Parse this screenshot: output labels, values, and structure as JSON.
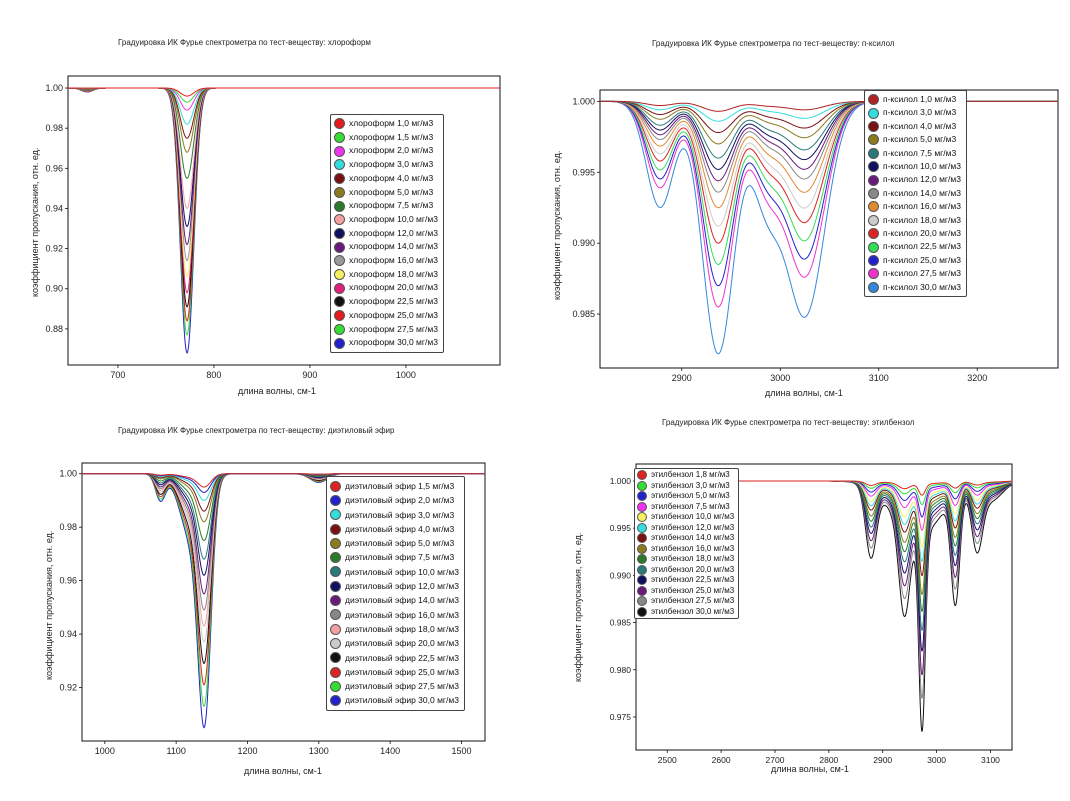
{
  "chart_data": [
    {
      "type": "line",
      "title": "Градуировка ИК Фурье спектрометра по тест-веществу: хлороформ",
      "xlabel": "длина волны, см-1",
      "ylabel": "коэффициент пропускания, отн. ед.",
      "xlim": [
        648,
        1098
      ],
      "ylim": [
        0.862,
        1.006
      ],
      "xticks": [
        "700",
        "800",
        "900",
        "1000"
      ],
      "yticks": [
        "0.88",
        "0.90",
        "0.92",
        "0.94",
        "0.96",
        "0.98",
        "1.00"
      ],
      "legend_position": "right",
      "grid": false,
      "bands": [
        {
          "center": 772,
          "width": 7,
          "rel": 1.0
        },
        {
          "center": 668,
          "width": 6,
          "rel": 0.015
        }
      ],
      "series": [
        {
          "name": "хлороформ 1,0 мг/м3",
          "color": "#e41a1c",
          "min": 0.996
        },
        {
          "name": "хлороформ 1,5 мг/м3",
          "color": "#33dd33",
          "min": 0.993
        },
        {
          "name": "хлороформ 2,0 мг/м3",
          "color": "#ee33ee",
          "min": 0.989
        },
        {
          "name": "хлороформ 3,0 мг/м3",
          "color": "#33dddd",
          "min": 0.982
        },
        {
          "name": "хлороформ 4,0 мг/м3",
          "color": "#7a1010",
          "min": 0.975
        },
        {
          "name": "хлороформ 5,0 мг/м3",
          "color": "#8a7a20",
          "min": 0.968
        },
        {
          "name": "хлороформ 7,5 мг/м3",
          "color": "#2a7a2a",
          "min": 0.955
        },
        {
          "name": "хлороформ 10,0 мг/м3",
          "color": "#f4a0a0",
          "min": 0.94
        },
        {
          "name": "хлороформ 12,0 мг/м3",
          "color": "#101060",
          "min": 0.931
        },
        {
          "name": "хлороформ 14,0 мг/м3",
          "color": "#6a1a7a",
          "min": 0.922
        },
        {
          "name": "хлороформ 16,0 мг/м3",
          "color": "#999999",
          "min": 0.914
        },
        {
          "name": "хлороформ 18,0 мг/м3",
          "color": "#f4f060",
          "min": 0.906
        },
        {
          "name": "хлороформ 20,0 мг/м3",
          "color": "#e0207a",
          "min": 0.898
        },
        {
          "name": "хлороформ 22,5 мг/м3",
          "color": "#111111",
          "min": 0.891
        },
        {
          "name": "хлороформ 25,0 мг/м3",
          "color": "#e41a1c",
          "min": 0.884
        },
        {
          "name": "хлороформ 27,5 мг/м3",
          "color": "#33dd33",
          "min": 0.877
        },
        {
          "name": "хлороформ 30,0 мг/м3",
          "color": "#2222cc",
          "min": 0.868
        }
      ]
    },
    {
      "type": "line",
      "title": "Градуировка ИК Фурье спектрометра по тест-веществу: п-ксилол",
      "xlabel": "длина волны, см-1",
      "ylabel": "коэффициент пропускания, отн. ед.",
      "xlim": [
        2817,
        3282
      ],
      "ylim": [
        0.9812,
        1.0008
      ],
      "xticks": [
        "2900",
        "3000",
        "3100",
        "3200"
      ],
      "yticks": [
        "0.985",
        "0.990",
        "0.995",
        "1.000"
      ],
      "legend_position": "top-right",
      "grid": false,
      "bands": [
        {
          "center": 2937,
          "width": 16,
          "rel": 1.0
        },
        {
          "center": 3025,
          "width": 20,
          "rel": 0.85
        },
        {
          "center": 2878,
          "width": 14,
          "rel": 0.42
        },
        {
          "center": 2985,
          "width": 14,
          "rel": 0.35
        }
      ],
      "series": [
        {
          "name": "п-ксилол 1,0 мг/м3",
          "color": "#b22222",
          "min": 0.9993
        },
        {
          "name": "п-ксилол 3,0 мг/м3",
          "color": "#33dddd",
          "min": 0.9986
        },
        {
          "name": "п-ксилол 4,0 мг/м3",
          "color": "#7a1010",
          "min": 0.9978
        },
        {
          "name": "п-ксилол 5,0 мг/м3",
          "color": "#8a7a20",
          "min": 0.997
        },
        {
          "name": "п-ксилол 7,5 мг/м3",
          "color": "#2a7a7a",
          "min": 0.996
        },
        {
          "name": "п-ксилол 10,0 мг/м3",
          "color": "#101060",
          "min": 0.9952
        },
        {
          "name": "п-ксилол 12,0 мг/м3",
          "color": "#6a1a7a",
          "min": 0.9944
        },
        {
          "name": "п-ксилол 14,0 мг/м3",
          "color": "#888888",
          "min": 0.9936
        },
        {
          "name": "п-ксилол 16,0 мг/м3",
          "color": "#e08a30",
          "min": 0.9925
        },
        {
          "name": "п-ксилол 18,0 мг/м3",
          "color": "#cccccc",
          "min": 0.9912
        },
        {
          "name": "п-ксилол 20,0 мг/м3",
          "color": "#dd2222",
          "min": 0.99
        },
        {
          "name": "п-ксилол 22,5 мг/м3",
          "color": "#33dd55",
          "min": 0.9885
        },
        {
          "name": "п-ксилол 25,0 мг/м3",
          "color": "#2222cc",
          "min": 0.987
        },
        {
          "name": "п-ксилол 27,5 мг/м3",
          "color": "#ee33cc",
          "min": 0.9855
        },
        {
          "name": "п-ксилол 30,0 мг/м3",
          "color": "#3388dd",
          "min": 0.9822
        }
      ]
    },
    {
      "type": "line",
      "title": "Градуировка ИК Фурье спектрометра по тест-веществу: диэтиловый эфир",
      "xlabel": "длина волны, см-1",
      "ylabel": "коэффициент пропускания, отн. ед.",
      "xlim": [
        968,
        1533
      ],
      "ylim": [
        0.9,
        1.004
      ],
      "xticks": [
        "1000",
        "1100",
        "1200",
        "1300",
        "1400",
        "1500"
      ],
      "yticks": [
        "0.92",
        "0.94",
        "0.96",
        "0.98",
        "1.00"
      ],
      "legend_position": "right",
      "grid": false,
      "bands": [
        {
          "center": 1140,
          "width": 9,
          "rel": 1.0
        },
        {
          "center": 1122,
          "width": 16,
          "rel": 0.3
        },
        {
          "center": 1078,
          "width": 7,
          "rel": 0.12
        },
        {
          "center": 1300,
          "width": 12,
          "rel": 0.04
        }
      ],
      "series": [
        {
          "name": "диэтиловый эфир 1,5 мг/м3",
          "color": "#dd2222",
          "min": 0.995
        },
        {
          "name": "диэтиловый эфир 2,0 мг/м3",
          "color": "#2222cc",
          "min": 0.993
        },
        {
          "name": "диэтиловый эфир 3,0 мг/м3",
          "color": "#33dddd",
          "min": 0.99
        },
        {
          "name": "диэтиловый эфир 4,0 мг/м3",
          "color": "#7a1010",
          "min": 0.986
        },
        {
          "name": "диэтиловый эфир 5,0 мг/м3",
          "color": "#8a7a20",
          "min": 0.982
        },
        {
          "name": "диэтиловый эфир 7,5 мг/м3",
          "color": "#2a7a2a",
          "min": 0.975
        },
        {
          "name": "диэтиловый эфир 10,0 мг/м3",
          "color": "#2a7a7a",
          "min": 0.968
        },
        {
          "name": "диэтиловый эфир 12,0 мг/м3",
          "color": "#101060",
          "min": 0.962
        },
        {
          "name": "диэтиловый эфир 14,0 мг/м3",
          "color": "#6a1a7a",
          "min": 0.955
        },
        {
          "name": "диэтиловый эфир 16,0 мг/м3",
          "color": "#888888",
          "min": 0.949
        },
        {
          "name": "диэтиловый эфир 18,0 мг/м3",
          "color": "#f4a0a0",
          "min": 0.943
        },
        {
          "name": "диэтиловый эфир 20,0 мг/м3",
          "color": "#cccccc",
          "min": 0.937
        },
        {
          "name": "диэтиловый эфир 22,5 мг/м3",
          "color": "#111111",
          "min": 0.929
        },
        {
          "name": "диэтиловый эфир 25,0 мг/м3",
          "color": "#dd2222",
          "min": 0.921
        },
        {
          "name": "диэтиловый эфир 27,5 мг/м3",
          "color": "#33dd33",
          "min": 0.913
        },
        {
          "name": "диэтиловый эфир 30,0 мг/м3",
          "color": "#2222cc",
          "min": 0.905
        }
      ]
    },
    {
      "type": "line",
      "title": "Градуировка ИК Фурье спектрометра по тест-веществу: этилбензол",
      "xlabel": "длина волны, см-1",
      "ylabel": "коэффициент пропускания, отн. ед.",
      "xlim": [
        2442,
        3140
      ],
      "ylim": [
        0.9715,
        1.0018
      ],
      "xticks": [
        "2500",
        "2600",
        "2700",
        "2800",
        "2900",
        "3000",
        "3100"
      ],
      "yticks": [
        "0.975",
        "0.980",
        "0.985",
        "0.990",
        "0.995",
        "1.000"
      ],
      "legend_position": "top-left",
      "grid": false,
      "bands": [
        {
          "center": 2973,
          "width": 6,
          "rel": 1.0
        },
        {
          "center": 3035,
          "width": 8,
          "rel": 0.55
        },
        {
          "center": 2940,
          "width": 10,
          "rel": 0.45
        },
        {
          "center": 2878,
          "width": 10,
          "rel": 0.35
        },
        {
          "center": 3075,
          "width": 10,
          "rel": 0.3
        },
        {
          "center": 2965,
          "width": 45,
          "rel": 0.28
        },
        {
          "center": 3100,
          "width": 22,
          "rel": 0.1
        }
      ],
      "series": [
        {
          "name": "этилбензол 1,8 мг/м3",
          "color": "#dd2222",
          "min": 0.9985
        },
        {
          "name": "этилбензол 3,0 мг/м3",
          "color": "#33dd33",
          "min": 0.9975
        },
        {
          "name": "этилбензол 5,0 мг/м3",
          "color": "#2222cc",
          "min": 0.9962
        },
        {
          "name": "этилбензол 7,5 мг/м3",
          "color": "#ee33ee",
          "min": 0.9948
        },
        {
          "name": "этилбензол 10,0 мг/м3",
          "color": "#f4f060",
          "min": 0.993
        },
        {
          "name": "этилбензол 12,0 мг/м3",
          "color": "#33dddd",
          "min": 0.9915
        },
        {
          "name": "этилбензол 14,0 мг/м3",
          "color": "#7a1010",
          "min": 0.99
        },
        {
          "name": "этилбензол 16,0 мг/м3",
          "color": "#8a7a20",
          "min": 0.988
        },
        {
          "name": "этилбензол 18,0 мг/м3",
          "color": "#2a7a2a",
          "min": 0.9862
        },
        {
          "name": "этилбензол 20,0 мг/м3",
          "color": "#2a7a7a",
          "min": 0.9842
        },
        {
          "name": "этилбензол 22,5 мг/м3",
          "color": "#101060",
          "min": 0.982
        },
        {
          "name": "этилбензол 25,0 мг/м3",
          "color": "#6a1a7a",
          "min": 0.9795
        },
        {
          "name": "этилбензол 27,5 мг/м3",
          "color": "#888888",
          "min": 0.977
        },
        {
          "name": "этилбензол 30,0 мг/м3",
          "color": "#111111",
          "min": 0.9735
        }
      ]
    }
  ]
}
